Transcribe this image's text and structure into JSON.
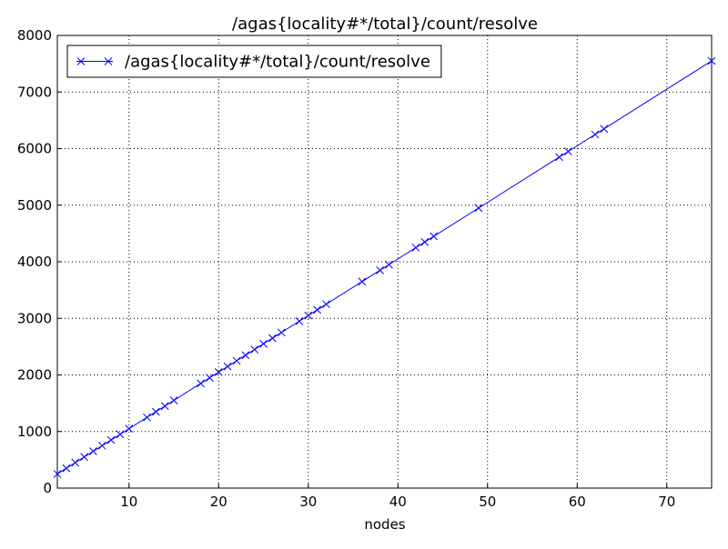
{
  "chart_data": {
    "type": "line",
    "title": "/agas{locality#*/total}/count/resolve",
    "x_label": "nodes",
    "x": [
      2,
      3,
      4,
      5,
      6,
      7,
      8,
      9,
      10,
      12,
      13,
      14,
      15,
      18,
      19,
      20,
      21,
      22,
      23,
      24,
      25,
      26,
      27,
      29,
      30,
      31,
      32,
      36,
      38,
      39,
      42,
      43,
      44,
      49,
      58,
      59,
      62,
      63,
      75
    ],
    "series": [
      {
        "name": "/agas{locality#*/total}/count/resolve",
        "color": "#0000ff",
        "marker": "x",
        "values": [
          250,
          350,
          450,
          550,
          650,
          750,
          850,
          950,
          1050,
          1250,
          1350,
          1450,
          1550,
          1850,
          1950,
          2050,
          2150,
          2250,
          2350,
          2450,
          2550,
          2650,
          2750,
          2950,
          3050,
          3150,
          3250,
          3650,
          3850,
          3950,
          4250,
          4350,
          4450,
          4950,
          5850,
          5950,
          6250,
          6350,
          7550
        ]
      }
    ],
    "xlim": [
      2,
      75
    ],
    "xticks": [
      10,
      20,
      30,
      40,
      50,
      60,
      70
    ],
    "ylim": [
      0,
      8000
    ],
    "yticks": [
      0,
      1000,
      2000,
      3000,
      4000,
      5000,
      6000,
      7000,
      8000
    ],
    "grid": true,
    "legend": "upper left"
  }
}
